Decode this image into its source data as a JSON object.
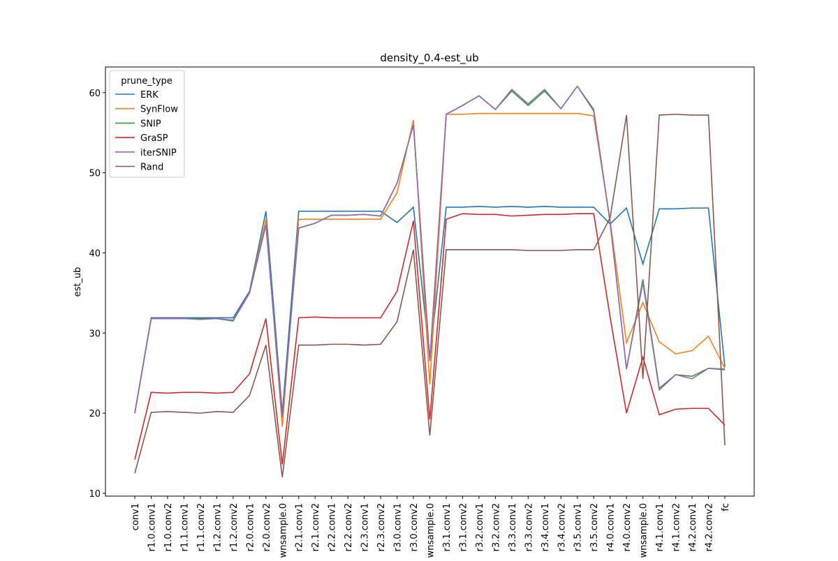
{
  "chart_data": {
    "type": "line",
    "title": "density_0.4-est_ub",
    "y_label": "est_ub",
    "categories": [
      "conv1",
      "r1.0.conv1",
      "r1.0.conv2",
      "r1.1.conv1",
      "r1.1.conv2",
      "r1.2.conv1",
      "r1.2.conv2",
      "r2.0.conv1",
      "r2.0.conv2",
      "wnsample.0",
      "r2.1.conv1",
      "r2.1.conv2",
      "r2.2.conv1",
      "r2.2.conv2",
      "r2.3.conv1",
      "r2.3.conv2",
      "r3.0.conv1",
      "r3.0.conv2",
      "wnsample.0",
      "r3.1.conv1",
      "r3.1.conv2",
      "r3.2.conv1",
      "r3.2.conv2",
      "r3.3.conv1",
      "r3.3.conv2",
      "r3.4.conv1",
      "r3.4.conv2",
      "r3.5.conv1",
      "r3.5.conv2",
      "r4.0.conv1",
      "r4.0.conv2",
      "wnsample.0",
      "r4.1.conv1",
      "r4.1.conv2",
      "r4.2.conv1",
      "r4.2.conv2",
      "fc"
    ],
    "series": [
      {
        "name": "ERK",
        "color": "#1f77b4",
        "values": [
          20.0,
          31.9,
          31.9,
          31.9,
          31.9,
          31.9,
          31.9,
          35.2,
          45.2,
          20.0,
          45.2,
          45.2,
          45.2,
          45.2,
          45.2,
          45.2,
          43.8,
          45.7,
          26.8,
          45.7,
          45.7,
          45.8,
          45.7,
          45.8,
          45.7,
          45.8,
          45.7,
          45.7,
          45.7,
          43.6,
          45.6,
          38.6,
          45.5,
          45.5,
          45.6,
          45.6,
          25.8
        ]
      },
      {
        "name": "SynFlow",
        "color": "#ff7f0e",
        "values": [
          20.0,
          31.8,
          31.8,
          31.8,
          31.8,
          31.8,
          31.6,
          35.0,
          44.2,
          18.3,
          44.2,
          44.2,
          44.2,
          44.2,
          44.2,
          44.2,
          47.5,
          56.6,
          23.6,
          57.3,
          57.3,
          57.4,
          57.4,
          57.4,
          57.4,
          57.4,
          57.4,
          57.4,
          57.1,
          44.0,
          28.8,
          33.8,
          28.9,
          27.4,
          27.8,
          29.6,
          25.6
        ]
      },
      {
        "name": "SNIP",
        "color": "#2ca02c",
        "values": [
          20.0,
          31.8,
          31.8,
          31.8,
          31.8,
          31.8,
          31.5,
          35.0,
          43.5,
          19.5,
          43.1,
          43.7,
          44.7,
          44.7,
          44.8,
          44.6,
          48.7,
          56.0,
          26.5,
          57.3,
          58.4,
          59.6,
          57.9,
          60.2,
          58.4,
          60.2,
          58.0,
          60.8,
          57.9,
          43.8,
          25.5,
          36.7,
          23.1,
          24.8,
          24.6,
          25.6,
          25.4
        ]
      },
      {
        "name": "GraSP",
        "color": "#d62728",
        "values": [
          14.2,
          22.6,
          22.5,
          22.6,
          22.6,
          22.5,
          22.6,
          24.9,
          31.8,
          13.6,
          31.9,
          32.0,
          31.9,
          31.9,
          31.9,
          31.9,
          35.2,
          44.0,
          19.2,
          44.2,
          44.9,
          44.8,
          44.8,
          44.6,
          44.7,
          44.8,
          44.8,
          44.9,
          44.9,
          32.0,
          20.0,
          27.0,
          19.8,
          20.5,
          20.6,
          20.6,
          18.5
        ]
      },
      {
        "name": "iterSNIP",
        "color": "#9467bd",
        "values": [
          20.0,
          31.8,
          31.8,
          31.8,
          31.7,
          31.8,
          31.6,
          35.0,
          43.5,
          19.5,
          43.1,
          43.7,
          44.7,
          44.7,
          44.8,
          44.6,
          48.7,
          56.0,
          26.5,
          57.3,
          58.4,
          59.6,
          57.9,
          60.4,
          58.6,
          60.4,
          58.0,
          60.8,
          57.7,
          43.8,
          25.5,
          36.3,
          22.9,
          24.8,
          24.3,
          25.6,
          25.5
        ]
      },
      {
        "name": "Rand",
        "color": "#8c564b",
        "values": [
          12.5,
          20.1,
          20.2,
          20.1,
          20.0,
          20.2,
          20.1,
          22.2,
          28.5,
          12.0,
          28.5,
          28.5,
          28.6,
          28.6,
          28.5,
          28.6,
          31.4,
          40.4,
          17.2,
          40.4,
          40.4,
          40.4,
          40.4,
          40.4,
          40.3,
          40.3,
          40.3,
          40.4,
          40.4,
          44.4,
          57.2,
          24.3,
          57.2,
          57.3,
          57.2,
          57.2,
          16.0
        ]
      }
    ],
    "legend_title": "prune_type",
    "legend": "upper left",
    "ylim": [
      9.65,
      63.2
    ],
    "yticks": [
      10,
      20,
      30,
      40,
      50,
      60
    ]
  }
}
